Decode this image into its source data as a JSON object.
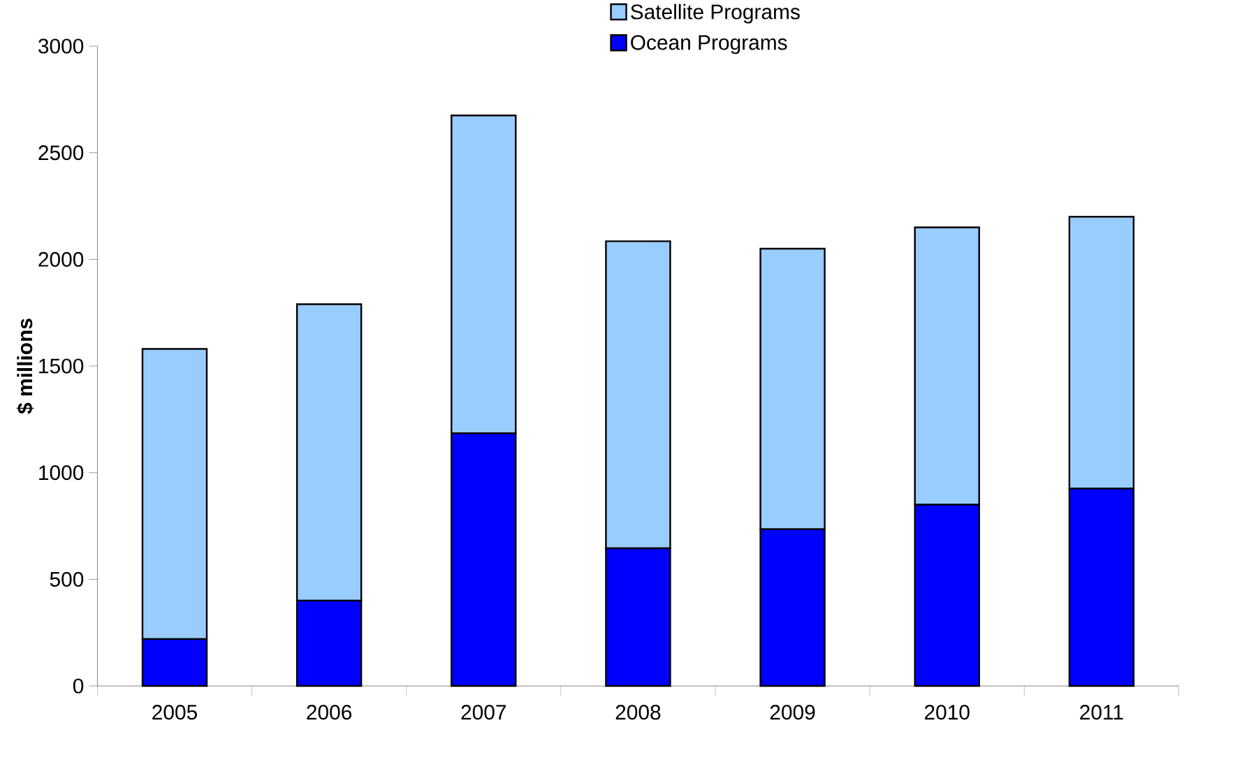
{
  "chart_data": {
    "type": "bar",
    "stacked": true,
    "ylabel": "$ millions",
    "categories": [
      "2005",
      "2006",
      "2007",
      "2008",
      "2009",
      "2010",
      "2011"
    ],
    "series": [
      {
        "name": "Ocean Programs",
        "color": "#0000ff",
        "values": [
          220,
          400,
          1185,
          645,
          735,
          850,
          925
        ]
      },
      {
        "name": "Satellite Programs",
        "color": "#99ccff",
        "values": [
          1360,
          1390,
          1490,
          1440,
          1315,
          1300,
          1275
        ]
      }
    ],
    "ylim": [
      0,
      3000
    ],
    "yticks": [
      0,
      500,
      1000,
      1500,
      2000,
      2500,
      3000
    ],
    "grid": false,
    "legend": "top"
  }
}
